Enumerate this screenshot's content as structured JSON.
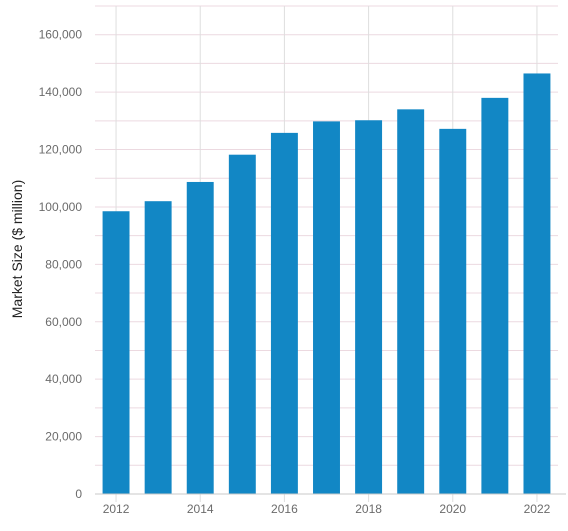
{
  "chart_data": {
    "type": "bar",
    "title": "",
    "xlabel": "",
    "ylabel": "Market Size ($ million)",
    "categories": [
      "2012",
      "2013",
      "2014",
      "2015",
      "2016",
      "2017",
      "2018",
      "2019",
      "2020",
      "2021",
      "2022"
    ],
    "values": [
      98500,
      102000,
      108700,
      118200,
      125800,
      129800,
      130200,
      134000,
      127200,
      138000,
      146500
    ],
    "ylim": [
      0,
      170000
    ],
    "yticks": [
      0,
      20000,
      40000,
      60000,
      80000,
      100000,
      120000,
      140000,
      160000
    ],
    "ytick_labels": [
      "0",
      "20,000",
      "40,000",
      "60,000",
      "80,000",
      "100,000",
      "120,000",
      "140,000",
      "160,000"
    ],
    "xtick_labels": [
      "2012",
      "2014",
      "2016",
      "2018",
      "2020",
      "2022"
    ],
    "grid": true,
    "legend": "none",
    "colors": {
      "bar": "#1287c5",
      "gridline_h": "#ecd9e0",
      "gridline_v": "#dedede",
      "axis_line": "#c8c8c8",
      "tick_text": "#6b6b6b",
      "title_text": "#222222"
    }
  }
}
